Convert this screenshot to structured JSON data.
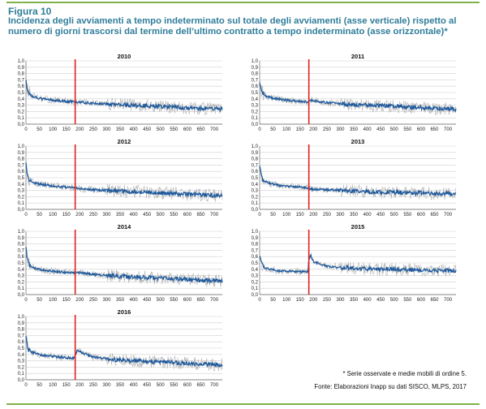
{
  "figure": {
    "label": "Figura 10",
    "title": "Incidenza degli avviamenti a tempo indeterminato sul totale degli avviamenti (asse verticale) rispetto al numero di giorni trascorsi dal termine dell’ultimo contratto a tempo indeterminato (asse orizzontale)*",
    "note": "* Serie osservate e medie mobili di ordine 5.",
    "source": "Fonte: Elaborazioni Inapp su dati SISCO, MLPS, 2017"
  },
  "colors": {
    "accent_rule": "#7fb24a",
    "title": "#2f7d9a",
    "observed_series": "#b5b5b5",
    "moving_average": "#1f5a9c",
    "marker_line": "#e02020",
    "grid": "#cfcfcf"
  },
  "chart_data": [
    {
      "type": "line",
      "title": "2010",
      "xlim": [
        0,
        730
      ],
      "ylim": [
        0.0,
        1.0
      ],
      "xticks": [
        "0",
        "50",
        "100",
        "150",
        "200",
        "250",
        "300",
        "350",
        "400",
        "450",
        "500",
        "550",
        "600",
        "650",
        "700"
      ],
      "yticks": [
        "0,0",
        "0,1",
        "0,2",
        "0,3",
        "0,4",
        "0,5",
        "0,6",
        "0,7",
        "0,8",
        "0,9",
        "1,0"
      ],
      "marker_x": 183,
      "series": [
        {
          "x": [
            0,
            5,
            10,
            20,
            40,
            60,
            100,
            150,
            180,
            183,
            190,
            250,
            300,
            350,
            400,
            450,
            500,
            550,
            600,
            650,
            700,
            730
          ],
          "y": [
            0.7,
            0.55,
            0.5,
            0.45,
            0.42,
            0.4,
            0.38,
            0.36,
            0.35,
            0.34,
            0.35,
            0.33,
            0.32,
            0.31,
            0.3,
            0.29,
            0.28,
            0.27,
            0.26,
            0.25,
            0.24,
            0.24
          ]
        }
      ]
    },
    {
      "type": "line",
      "title": "2011",
      "xlim": [
        0,
        730
      ],
      "ylim": [
        0.0,
        1.0
      ],
      "xticks": [
        "0",
        "50",
        "100",
        "150",
        "200",
        "250",
        "300",
        "350",
        "400",
        "450",
        "500",
        "550",
        "600",
        "650",
        "700"
      ],
      "yticks": [
        "0,0",
        "0,1",
        "0,2",
        "0,3",
        "0,4",
        "0,5",
        "0,6",
        "0,7",
        "0,8",
        "0,9",
        "1,0"
      ],
      "marker_x": 183,
      "series": [
        {
          "x": [
            0,
            5,
            10,
            20,
            40,
            60,
            100,
            150,
            180,
            183,
            190,
            250,
            300,
            350,
            400,
            450,
            500,
            550,
            600,
            650,
            700,
            730
          ],
          "y": [
            0.68,
            0.55,
            0.5,
            0.45,
            0.42,
            0.4,
            0.38,
            0.36,
            0.35,
            0.36,
            0.38,
            0.34,
            0.32,
            0.31,
            0.3,
            0.29,
            0.28,
            0.27,
            0.26,
            0.25,
            0.24,
            0.23
          ]
        }
      ]
    },
    {
      "type": "line",
      "title": "2012",
      "xlim": [
        0,
        730
      ],
      "ylim": [
        0.0,
        1.0
      ],
      "xticks": [
        "0",
        "50",
        "100",
        "150",
        "200",
        "250",
        "300",
        "350",
        "400",
        "450",
        "500",
        "550",
        "600",
        "650",
        "700"
      ],
      "yticks": [
        "0,0",
        "0,1",
        "0,2",
        "0,3",
        "0,4",
        "0,5",
        "0,6",
        "0,7",
        "0,8",
        "0,9",
        "1,0"
      ],
      "marker_x": 183,
      "series": [
        {
          "x": [
            0,
            5,
            10,
            20,
            40,
            60,
            100,
            150,
            180,
            183,
            190,
            250,
            300,
            350,
            400,
            450,
            500,
            550,
            600,
            650,
            700,
            730
          ],
          "y": [
            0.72,
            0.55,
            0.48,
            0.44,
            0.41,
            0.39,
            0.37,
            0.35,
            0.34,
            0.34,
            0.33,
            0.31,
            0.3,
            0.29,
            0.28,
            0.27,
            0.26,
            0.25,
            0.24,
            0.23,
            0.22,
            0.22
          ]
        }
      ]
    },
    {
      "type": "line",
      "title": "2013",
      "xlim": [
        0,
        730
      ],
      "ylim": [
        0.0,
        1.0
      ],
      "xticks": [
        "0",
        "50",
        "100",
        "150",
        "200",
        "250",
        "300",
        "350",
        "400",
        "450",
        "500",
        "550",
        "600",
        "650",
        "700"
      ],
      "yticks": [
        "0,0",
        "0,1",
        "0,2",
        "0,3",
        "0,4",
        "0,5",
        "0,6",
        "0,7",
        "0,8",
        "0,9",
        "1,0"
      ],
      "marker_x": 183,
      "series": [
        {
          "x": [
            0,
            5,
            10,
            20,
            40,
            60,
            100,
            150,
            180,
            183,
            190,
            250,
            300,
            350,
            400,
            450,
            500,
            550,
            600,
            650,
            700,
            730
          ],
          "y": [
            0.7,
            0.55,
            0.48,
            0.44,
            0.41,
            0.39,
            0.37,
            0.35,
            0.34,
            0.33,
            0.32,
            0.31,
            0.3,
            0.29,
            0.28,
            0.27,
            0.27,
            0.26,
            0.26,
            0.25,
            0.25,
            0.25
          ]
        }
      ]
    },
    {
      "type": "line",
      "title": "2014",
      "xlim": [
        0,
        730
      ],
      "ylim": [
        0.0,
        1.0
      ],
      "xticks": [
        "0",
        "50",
        "100",
        "150",
        "200",
        "250",
        "300",
        "350",
        "400",
        "450",
        "500",
        "550",
        "600",
        "650",
        "700"
      ],
      "yticks": [
        "0,0",
        "0,1",
        "0,2",
        "0,3",
        "0,4",
        "0,5",
        "0,6",
        "0,7",
        "0,8",
        "0,9",
        "1,0"
      ],
      "marker_x": 183,
      "series": [
        {
          "x": [
            0,
            5,
            10,
            20,
            40,
            60,
            100,
            150,
            180,
            183,
            190,
            250,
            300,
            350,
            400,
            450,
            500,
            550,
            600,
            650,
            700,
            730
          ],
          "y": [
            0.72,
            0.56,
            0.48,
            0.44,
            0.41,
            0.39,
            0.37,
            0.35,
            0.34,
            0.34,
            0.35,
            0.32,
            0.3,
            0.29,
            0.28,
            0.27,
            0.26,
            0.25,
            0.24,
            0.23,
            0.22,
            0.21
          ]
        }
      ]
    },
    {
      "type": "line",
      "title": "2015",
      "xlim": [
        0,
        730
      ],
      "ylim": [
        0.0,
        1.0
      ],
      "xticks": [
        "0",
        "50",
        "100",
        "150",
        "200",
        "250",
        "300",
        "350",
        "400",
        "450",
        "500",
        "550",
        "600",
        "650",
        "700"
      ],
      "yticks": [
        "0,0",
        "0,1",
        "0,2",
        "0,3",
        "0,4",
        "0,5",
        "0,6",
        "0,7",
        "0,8",
        "0,9",
        "1,0"
      ],
      "marker_x": 183,
      "series": [
        {
          "x": [
            0,
            5,
            10,
            20,
            40,
            60,
            100,
            150,
            180,
            183,
            190,
            200,
            250,
            300,
            350,
            400,
            450,
            500,
            550,
            600,
            650,
            700,
            730
          ],
          "y": [
            0.6,
            0.5,
            0.46,
            0.42,
            0.4,
            0.38,
            0.37,
            0.36,
            0.36,
            0.55,
            0.62,
            0.52,
            0.45,
            0.43,
            0.42,
            0.41,
            0.4,
            0.4,
            0.39,
            0.39,
            0.38,
            0.38,
            0.38
          ]
        }
      ]
    },
    {
      "type": "line",
      "title": "2016",
      "xlim": [
        0,
        730
      ],
      "ylim": [
        0.0,
        1.0
      ],
      "xticks": [
        "0",
        "50",
        "100",
        "150",
        "200",
        "250",
        "300",
        "350",
        "400",
        "450",
        "500",
        "550",
        "600",
        "650",
        "700"
      ],
      "yticks": [
        "0,0",
        "0,1",
        "0,2",
        "0,3",
        "0,4",
        "0,5",
        "0,6",
        "0,7",
        "0,8",
        "0,9",
        "1,0"
      ],
      "marker_x": 183,
      "series": [
        {
          "x": [
            0,
            5,
            10,
            20,
            40,
            60,
            100,
            150,
            180,
            183,
            190,
            250,
            300,
            350,
            400,
            450,
            500,
            550,
            600,
            650,
            700,
            730
          ],
          "y": [
            0.72,
            0.55,
            0.48,
            0.44,
            0.41,
            0.39,
            0.37,
            0.35,
            0.34,
            0.4,
            0.46,
            0.36,
            0.33,
            0.31,
            0.3,
            0.29,
            0.28,
            0.27,
            0.26,
            0.25,
            0.24,
            0.24
          ]
        }
      ]
    }
  ]
}
